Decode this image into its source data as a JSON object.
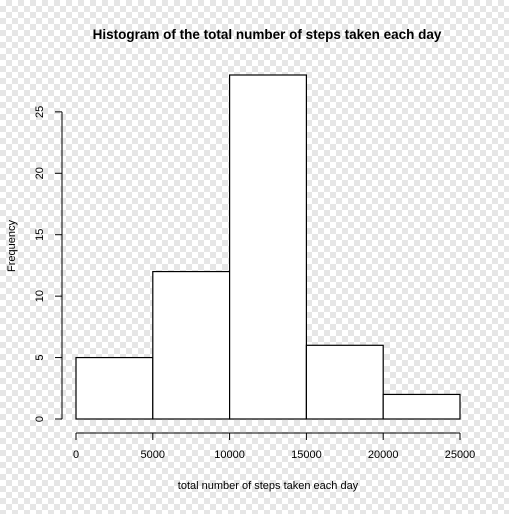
{
  "chart_data": {
    "type": "bar",
    "title": "Histogram of the total number of steps taken each day",
    "xlabel": "total number of steps taken each day",
    "ylabel": "Frequency",
    "bins": [
      {
        "start": 0,
        "end": 5000,
        "count": 5
      },
      {
        "start": 5000,
        "end": 10000,
        "count": 12
      },
      {
        "start": 10000,
        "end": 15000,
        "count": 28
      },
      {
        "start": 15000,
        "end": 20000,
        "count": 6
      },
      {
        "start": 20000,
        "end": 25000,
        "count": 2
      }
    ],
    "xlim": [
      0,
      25000
    ],
    "ylim": [
      0,
      28
    ],
    "x_ticks": [
      "0",
      "5000",
      "10000",
      "15000",
      "20000",
      "25000"
    ],
    "y_ticks": [
      "0",
      "5",
      "10",
      "15",
      "20",
      "25"
    ],
    "grid": false,
    "colors": {
      "bar_fill": "#ffffff",
      "bar_stroke": "#000000",
      "axis": "#000000"
    }
  }
}
